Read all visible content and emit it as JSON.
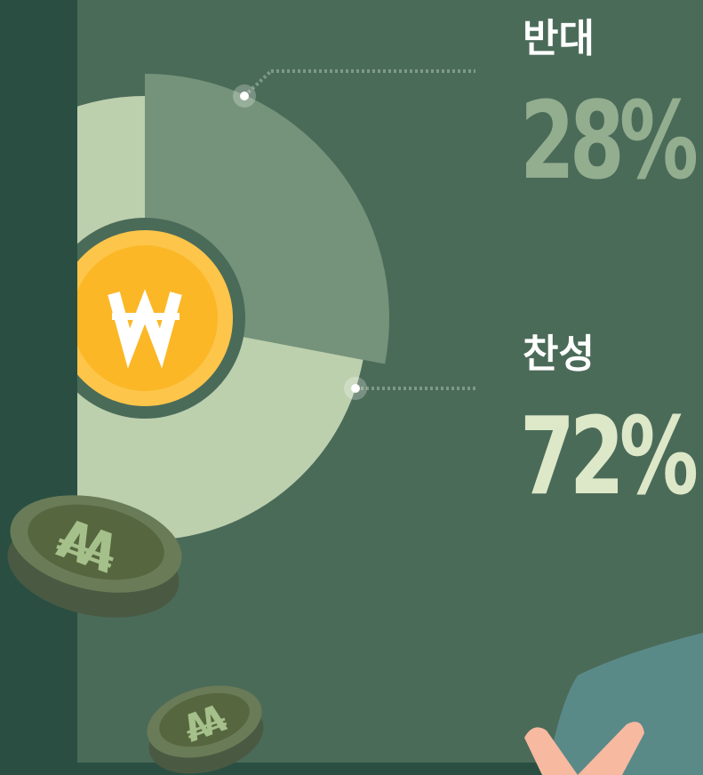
{
  "chart_data": {
    "type": "pie",
    "categories": [
      "반대",
      "찬성"
    ],
    "values": [
      28,
      72
    ],
    "value_labels": [
      "28%",
      "72%"
    ],
    "colors": [
      "#75937a",
      "#bdd0ae"
    ],
    "label_colors": [
      "#93ad8f",
      "#dde8c8"
    ]
  }
}
